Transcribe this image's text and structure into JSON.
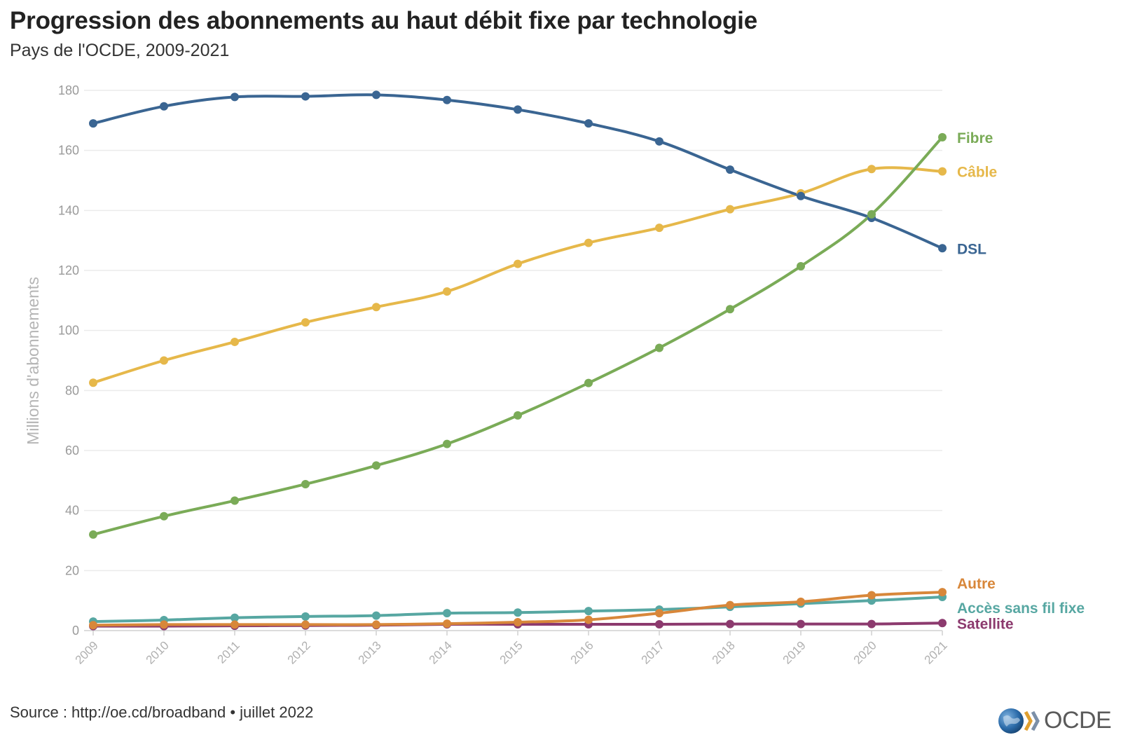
{
  "title": "Progression des abonnements au haut débit fixe par technologie",
  "subtitle": "Pays de l'OCDE, 2009-2021",
  "source": "Source : http://oe.cd/broadband • juillet 2022",
  "logo": {
    "text": "OCDE",
    "colors": {
      "globe": "#2a6aa8",
      "chevron": "#7b8fa8",
      "text": "#5a5a5a"
    }
  },
  "chart_data": {
    "type": "line",
    "title": "Progression des abonnements au haut débit fixe par technologie",
    "subtitle": "Pays de l'OCDE, 2009-2021",
    "xlabel": "",
    "ylabel": "Millions d'abonnements",
    "ylim": [
      0,
      180
    ],
    "yticks": [
      0,
      20,
      40,
      60,
      80,
      100,
      120,
      140,
      160,
      180
    ],
    "grid": true,
    "legend": "direct labels at right end of lines",
    "x": [
      "2009",
      "2010",
      "2011",
      "2012",
      "2013",
      "2014",
      "2015",
      "2016",
      "2017",
      "2018",
      "2019",
      "2020",
      "2021"
    ],
    "series": [
      {
        "name": "DSL",
        "color": "#3a6592",
        "values": [
          169,
          174.7,
          177.8,
          178,
          178.5,
          176.8,
          173.6,
          169,
          163,
          153.6,
          144.8,
          137.5,
          127.4
        ]
      },
      {
        "name": "Câble",
        "color": "#e6b84a",
        "values": [
          82.6,
          90,
          96.2,
          102.7,
          107.8,
          113,
          122.2,
          129.2,
          134.2,
          140.4,
          145.7,
          153.8,
          153
        ]
      },
      {
        "name": "Fibre",
        "color": "#7aab57",
        "values": [
          32,
          38.1,
          43.3,
          48.8,
          55,
          62.2,
          71.7,
          82.5,
          94.2,
          107.1,
          121.4,
          138.7,
          164.4
        ]
      },
      {
        "name": "Autre",
        "color": "#d8873a",
        "values": [
          1.8,
          2,
          2,
          2,
          2,
          2.3,
          2.8,
          3.6,
          5.8,
          8.5,
          9.6,
          11.8,
          12.8
        ]
      },
      {
        "name": "Accès sans fil fixe",
        "color": "#57a7a2",
        "values": [
          3,
          3.5,
          4.3,
          4.7,
          5,
          5.8,
          6,
          6.5,
          7,
          7.9,
          9,
          10,
          11.2
        ]
      },
      {
        "name": "Satellite",
        "color": "#8c3a6e",
        "values": [
          1.5,
          1.5,
          1.6,
          1.7,
          1.8,
          2.1,
          2.1,
          2.1,
          2.1,
          2.2,
          2.2,
          2.2,
          2.5
        ]
      }
    ]
  }
}
